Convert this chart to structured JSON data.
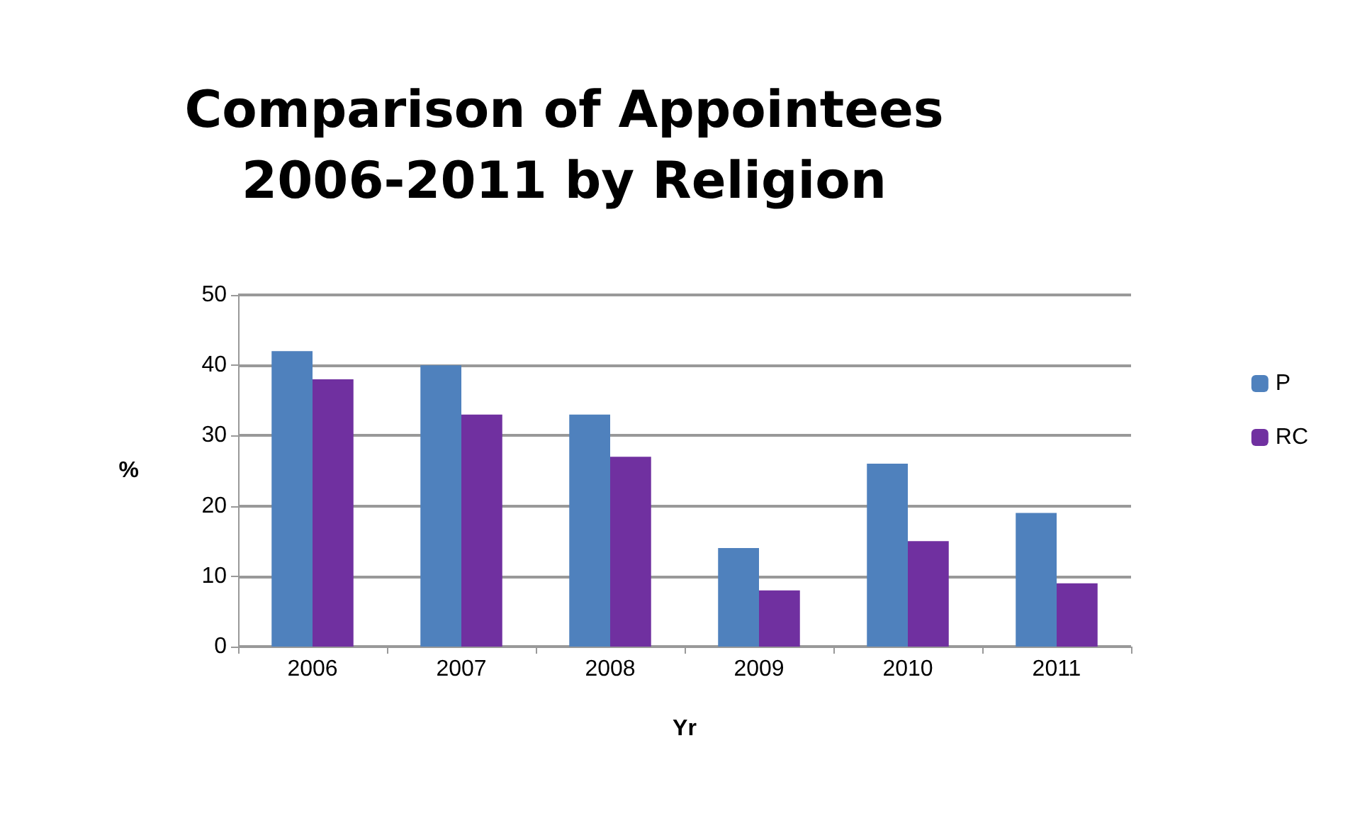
{
  "chart_data": {
    "type": "bar",
    "title": "Comparison of Appointees\n2006-2011 by Religion",
    "xlabel": "Yr",
    "ylabel": "%",
    "categories": [
      "2006",
      "2007",
      "2008",
      "2009",
      "2010",
      "2011"
    ],
    "series": [
      {
        "name": "P",
        "color": "#4f81bd",
        "values": [
          42,
          40,
          33,
          14,
          26,
          19
        ]
      },
      {
        "name": "RC",
        "color": "#7030a0",
        "values": [
          38,
          33,
          27,
          8,
          15,
          9
        ]
      }
    ],
    "ylim": [
      0,
      50
    ],
    "yticks": [
      0,
      10,
      20,
      30,
      40,
      50
    ],
    "grid": "y",
    "legend": "right"
  }
}
